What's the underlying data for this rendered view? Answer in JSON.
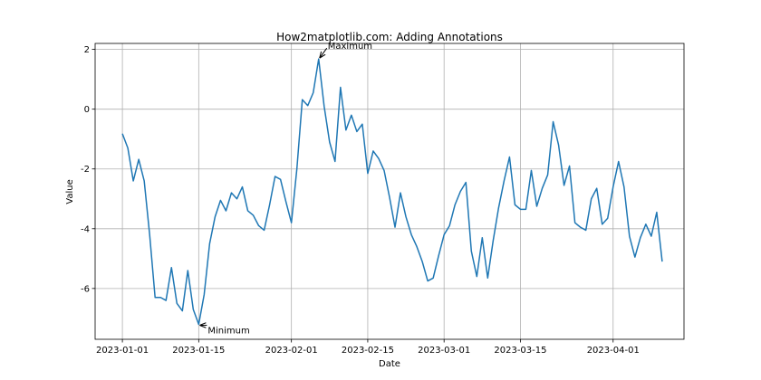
{
  "chart_data": {
    "type": "line",
    "title": "How2matplotlib.com: Adding Annotations",
    "x_label": "Date",
    "y_label": "Value",
    "x": [
      "2023-01-01",
      "2023-01-02",
      "2023-01-03",
      "2023-01-04",
      "2023-01-05",
      "2023-01-06",
      "2023-01-07",
      "2023-01-08",
      "2023-01-09",
      "2023-01-10",
      "2023-01-11",
      "2023-01-12",
      "2023-01-13",
      "2023-01-14",
      "2023-01-15",
      "2023-01-16",
      "2023-01-17",
      "2023-01-18",
      "2023-01-19",
      "2023-01-20",
      "2023-01-21",
      "2023-01-22",
      "2023-01-23",
      "2023-01-24",
      "2023-01-25",
      "2023-01-26",
      "2023-01-27",
      "2023-01-28",
      "2023-01-29",
      "2023-01-30",
      "2023-01-31",
      "2023-02-01",
      "2023-02-02",
      "2023-02-03",
      "2023-02-04",
      "2023-02-05",
      "2023-02-06",
      "2023-02-07",
      "2023-02-08",
      "2023-02-09",
      "2023-02-10",
      "2023-02-11",
      "2023-02-12",
      "2023-02-13",
      "2023-02-14",
      "2023-02-15",
      "2023-02-16",
      "2023-02-17",
      "2023-02-18",
      "2023-02-19",
      "2023-02-20",
      "2023-02-21",
      "2023-02-22",
      "2023-02-23",
      "2023-02-24",
      "2023-02-25",
      "2023-02-26",
      "2023-02-27",
      "2023-02-28",
      "2023-03-01",
      "2023-03-02",
      "2023-03-03",
      "2023-03-04",
      "2023-03-05",
      "2023-03-06",
      "2023-03-07",
      "2023-03-08",
      "2023-03-09",
      "2023-03-10",
      "2023-03-11",
      "2023-03-12",
      "2023-03-13",
      "2023-03-14",
      "2023-03-15",
      "2023-03-16",
      "2023-03-17",
      "2023-03-18",
      "2023-03-19",
      "2023-03-20",
      "2023-03-21",
      "2023-03-22",
      "2023-03-23",
      "2023-03-24",
      "2023-03-25",
      "2023-03-26",
      "2023-03-27",
      "2023-03-28",
      "2023-03-29",
      "2023-03-30",
      "2023-03-31",
      "2023-04-01",
      "2023-04-02",
      "2023-04-03",
      "2023-04-04",
      "2023-04-05",
      "2023-04-06",
      "2023-04-07",
      "2023-04-08",
      "2023-04-09",
      "2023-04-10"
    ],
    "series": [
      {
        "name": "Value",
        "color": "#1f77b4",
        "values": [
          -0.82,
          -1.3,
          -2.4,
          -1.68,
          -2.4,
          -4.2,
          -6.3,
          -6.3,
          -6.4,
          -5.3,
          -6.5,
          -6.75,
          -5.4,
          -6.7,
          -7.2,
          -6.2,
          -4.5,
          -3.6,
          -3.05,
          -3.4,
          -2.8,
          -3.0,
          -2.6,
          -3.4,
          -3.55,
          -3.9,
          -4.05,
          -3.2,
          -2.25,
          -2.35,
          -3.1,
          -3.8,
          -2.0,
          0.32,
          0.12,
          0.55,
          1.68,
          0.1,
          -1.1,
          -1.75,
          0.73,
          -0.7,
          -0.2,
          -0.75,
          -0.5,
          -2.15,
          -1.4,
          -1.65,
          -2.05,
          -2.95,
          -3.95,
          -2.8,
          -3.6,
          -4.2,
          -4.6,
          -5.1,
          -5.75,
          -5.65,
          -4.9,
          -4.2,
          -3.9,
          -3.2,
          -2.75,
          -2.45,
          -4.75,
          -5.6,
          -4.3,
          -5.65,
          -4.4,
          -3.3,
          -2.4,
          -1.6,
          -3.2,
          -3.35,
          -3.35,
          -2.05,
          -3.25,
          -2.65,
          -2.2,
          -0.42,
          -1.2,
          -2.55,
          -1.9,
          -3.8,
          -3.95,
          -4.05,
          -3.0,
          -2.65,
          -3.85,
          -3.65,
          -2.6,
          -1.75,
          -2.6,
          -4.25,
          -4.95,
          -4.3,
          -3.85,
          -4.25,
          -3.45,
          -5.1
        ]
      }
    ],
    "xlim": [
      "2022-12-27",
      "2023-04-14"
    ],
    "xticks": [
      "2023-01-01",
      "2023-01-15",
      "2023-02-01",
      "2023-02-15",
      "2023-03-01",
      "2023-03-15",
      "2023-04-01"
    ],
    "ylim": [
      -7.7,
      2.2
    ],
    "yticks": [
      -6,
      -4,
      -2,
      0,
      2
    ],
    "grid": true,
    "annotations": [
      {
        "text": "Maximum",
        "x": "2023-02-06",
        "y": 1.68
      },
      {
        "text": "Minimum",
        "x": "2023-01-15",
        "y": -7.2
      }
    ]
  }
}
